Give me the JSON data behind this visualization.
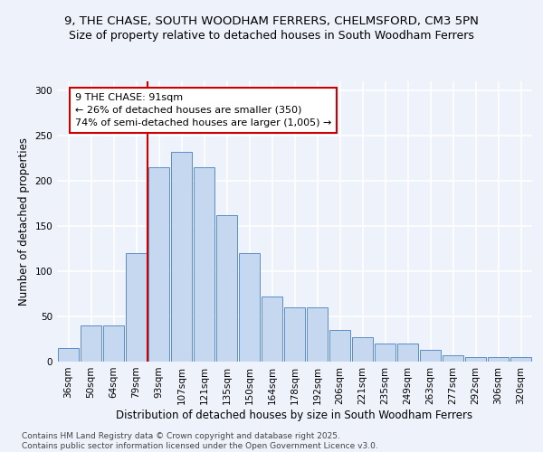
{
  "title_line1": "9, THE CHASE, SOUTH WOODHAM FERRERS, CHELMSFORD, CM3 5PN",
  "title_line2": "Size of property relative to detached houses in South Woodham Ferrers",
  "xlabel": "Distribution of detached houses by size in South Woodham Ferrers",
  "ylabel": "Number of detached properties",
  "categories": [
    "36sqm",
    "50sqm",
    "64sqm",
    "79sqm",
    "93sqm",
    "107sqm",
    "121sqm",
    "135sqm",
    "150sqm",
    "164sqm",
    "178sqm",
    "192sqm",
    "206sqm",
    "221sqm",
    "235sqm",
    "249sqm",
    "263sqm",
    "277sqm",
    "292sqm",
    "306sqm",
    "320sqm"
  ],
  "values": [
    15,
    40,
    40,
    120,
    215,
    232,
    215,
    162,
    120,
    72,
    60,
    60,
    35,
    27,
    20,
    20,
    13,
    7,
    5,
    5,
    5
  ],
  "bar_color": "#c5d8f0",
  "bar_edge_color": "#5b8ec4",
  "background_color": "#eef2fb",
  "grid_color": "#ffffff",
  "vline_color": "#cc0000",
  "vline_pos": 3.5,
  "annotation_text": "9 THE CHASE: 91sqm\n← 26% of detached houses are smaller (350)\n74% of semi-detached houses are larger (1,005) →",
  "annotation_box_color": "#ffffff",
  "annotation_box_edge_color": "#cc0000",
  "ylim": [
    0,
    310
  ],
  "yticks": [
    0,
    50,
    100,
    150,
    200,
    250,
    300
  ],
  "footer_text": "Contains HM Land Registry data © Crown copyright and database right 2025.\nContains public sector information licensed under the Open Government Licence v3.0.",
  "title_fontsize": 9.5,
  "subtitle_fontsize": 9,
  "axis_label_fontsize": 8.5,
  "tick_fontsize": 7.5,
  "annotation_fontsize": 8,
  "footer_fontsize": 6.5
}
